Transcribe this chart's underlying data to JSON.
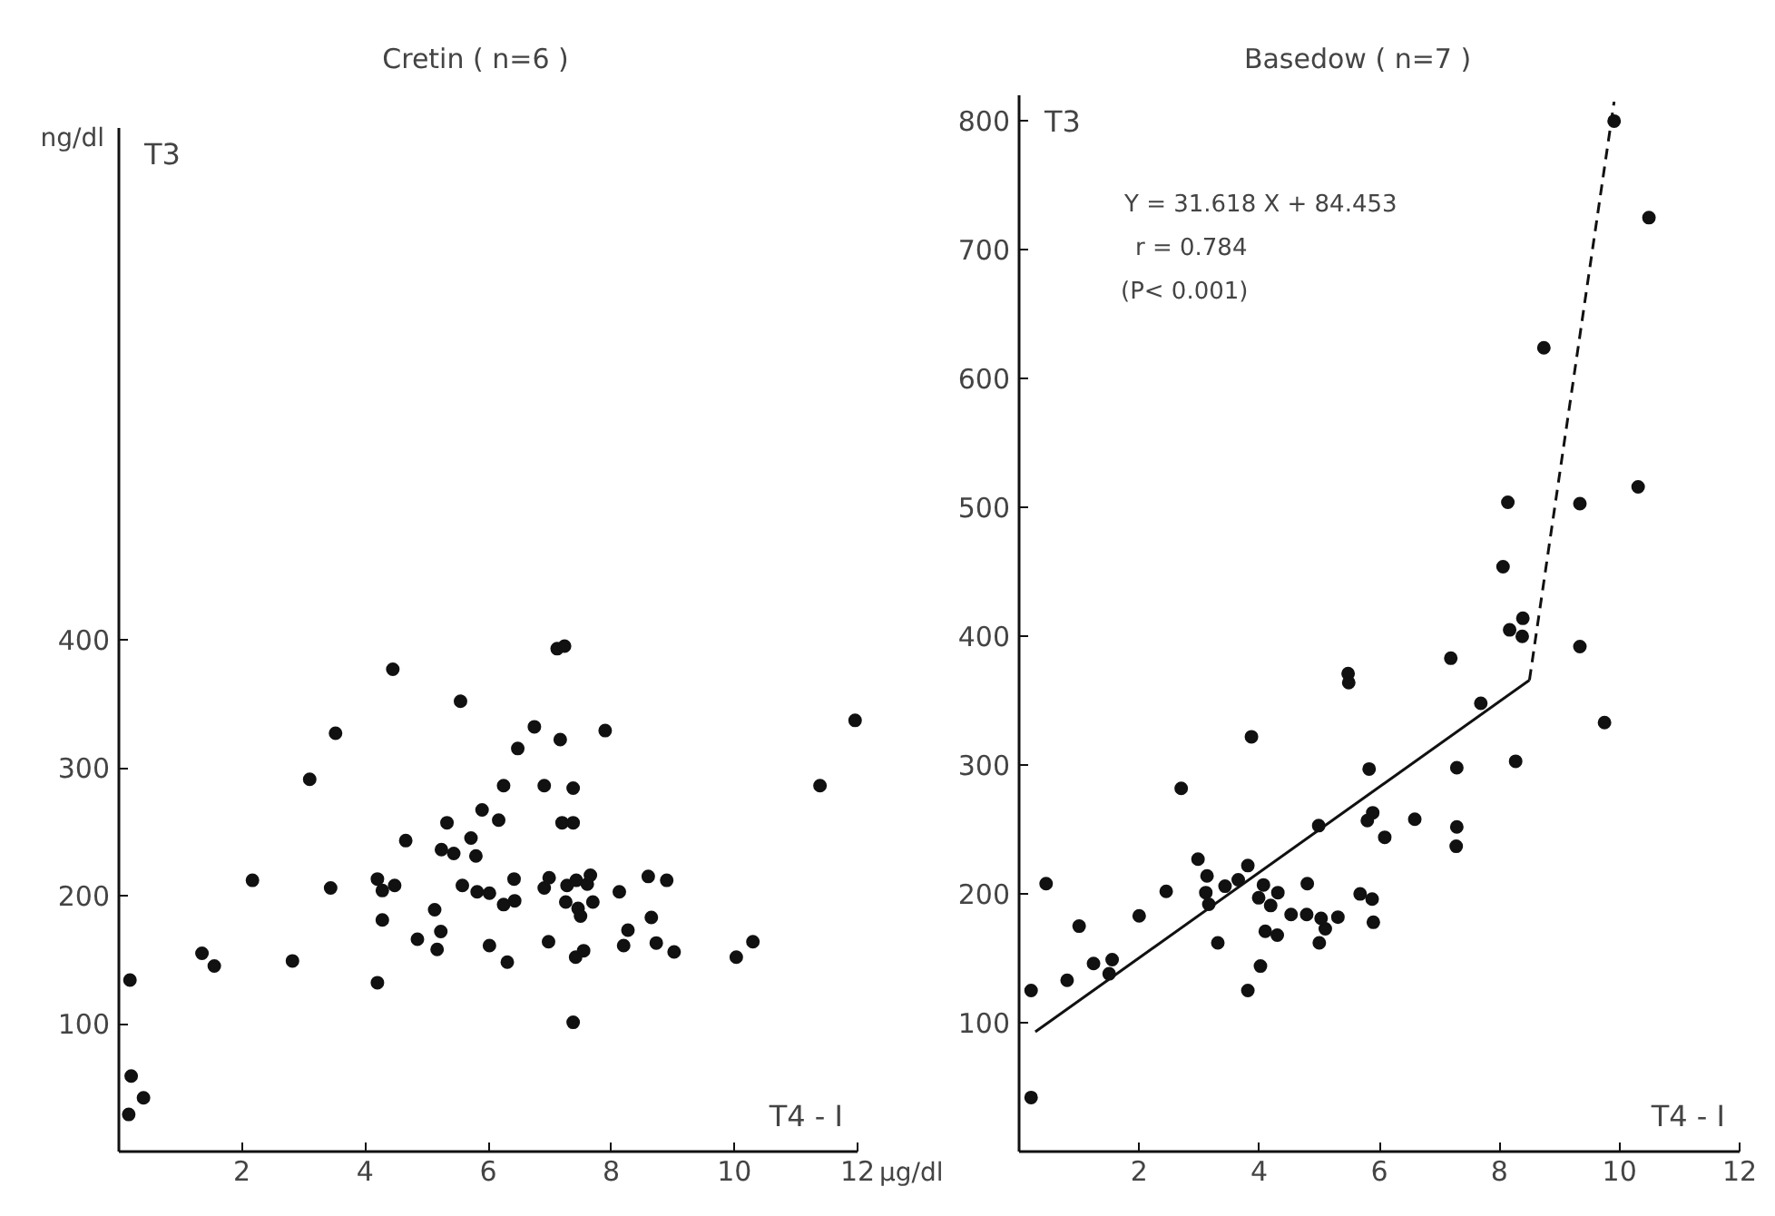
{
  "chart_data": [
    {
      "type": "scatter",
      "title": "Cretin ( n=6 )",
      "ylabel": "T3",
      "xlabel": "T4 - I",
      "annotations": [
        "ng/dl",
        "μg/dl"
      ],
      "marker": "circle",
      "xlim": [
        0,
        12
      ],
      "ylim": [
        0,
        800
      ],
      "xticks": [
        2,
        4,
        6,
        8,
        10,
        12
      ],
      "yticks": [
        100,
        200,
        300,
        400
      ],
      "series": [
        {
          "color": "#111111",
          "x": [
            0.18,
            0.2,
            0.4,
            0.16,
            1.35,
            1.55,
            2.17,
            2.82,
            3.1,
            3.44,
            3.52,
            4.45,
            4.2,
            4.2,
            4.28,
            4.28,
            4.48,
            4.66,
            4.85,
            5.13,
            5.17,
            5.23,
            5.24,
            5.33,
            5.44,
            5.55,
            5.58,
            5.72,
            5.8,
            5.82,
            5.9,
            6.02,
            6.02,
            6.17,
            6.25,
            6.25,
            6.31,
            6.42,
            6.43,
            6.48,
            6.75,
            6.91,
            6.91,
            6.99,
            6.98,
            7.12,
            7.24,
            7.17,
            7.2,
            7.38,
            7.38,
            7.28,
            7.26,
            7.38,
            7.42,
            7.43,
            7.46,
            7.5,
            7.55,
            7.61,
            7.66,
            7.7,
            7.9,
            8.13,
            8.2,
            8.27,
            8.6,
            8.65,
            8.73,
            8.9,
            9.02,
            10.03,
            10.3,
            11.39,
            11.96
          ],
          "values": [
            134,
            59,
            42,
            29,
            155,
            145,
            212,
            149,
            291,
            206,
            327,
            377,
            132,
            213,
            204,
            181,
            208,
            243,
            166,
            189,
            158,
            172,
            236,
            257,
            233,
            352,
            208,
            245,
            231,
            203,
            267,
            202,
            161,
            259,
            286,
            193,
            148,
            213,
            196,
            315,
            332,
            286,
            206,
            214,
            164,
            393,
            395,
            322,
            257,
            257,
            284,
            208,
            195,
            101,
            152,
            212,
            190,
            184,
            157,
            209,
            216,
            195,
            329,
            203,
            161,
            173,
            215,
            183,
            163,
            212,
            156,
            152,
            164,
            286,
            337
          ]
        }
      ]
    },
    {
      "type": "scatter",
      "title": "Basedow ( n=7 )",
      "ylabel": "T3",
      "xlabel": "T4 - I",
      "annotations": [
        "Y = 31.618 X + 84.453",
        "r = 0.784",
        "(P< 0.001)"
      ],
      "marker": "circle",
      "xlim": [
        0,
        12
      ],
      "ylim": [
        0,
        820
      ],
      "xticks": [
        2,
        4,
        6,
        8,
        10,
        12
      ],
      "yticks": [
        100,
        200,
        300,
        400,
        500,
        600,
        700,
        800
      ],
      "series": [
        {
          "color": "#111111",
          "x": [
            0.2,
            0.2,
            0.45,
            0.8,
            1.0,
            1.24,
            1.55,
            1.5,
            2.0,
            2.45,
            2.7,
            2.98,
            3.13,
            3.11,
            3.16,
            3.31,
            3.43,
            3.65,
            3.81,
            3.87,
            3.81,
            4.02,
            3.99,
            4.07,
            4.19,
            4.1,
            4.3,
            4.31,
            4.53,
            4.79,
            4.8,
            4.99,
            5.0,
            5.03,
            5.1,
            5.31,
            5.48,
            5.49,
            5.68,
            5.83,
            5.8,
            5.89,
            5.88,
            5.9,
            6.09,
            6.59,
            7.19,
            7.29,
            7.29,
            7.28,
            7.69,
            8.06,
            8.14,
            8.17,
            8.39,
            8.38,
            8.27,
            9.34,
            9.34,
            9.75,
            10.31,
            9.91,
            10.49,
            8.74
          ],
          "values": [
            42,
            125,
            208,
            133,
            175,
            146,
            149,
            138,
            183,
            202,
            282,
            227,
            214,
            201,
            192,
            162,
            206,
            211,
            222,
            322,
            125,
            144,
            197,
            207,
            191,
            171,
            168,
            201,
            184,
            184,
            208,
            253,
            162,
            181,
            173,
            182,
            371,
            364,
            200,
            297,
            257,
            263,
            196,
            178,
            244,
            258,
            383,
            298,
            252,
            237,
            348,
            454,
            504,
            405,
            414,
            400,
            303,
            503,
            392,
            333,
            516,
            800,
            725,
            624
          ]
        },
        {
          "type": "line",
          "color": "#111111",
          "line_style": "solid",
          "marker": "none",
          "x": [
            0.27,
            8.5
          ],
          "values": [
            93,
            366
          ]
        },
        {
          "type": "line",
          "color": "#111111",
          "line_style": "dashed",
          "marker": "none",
          "x": [
            8.5,
            9.91
          ],
          "values": [
            366,
            815
          ]
        }
      ]
    }
  ]
}
